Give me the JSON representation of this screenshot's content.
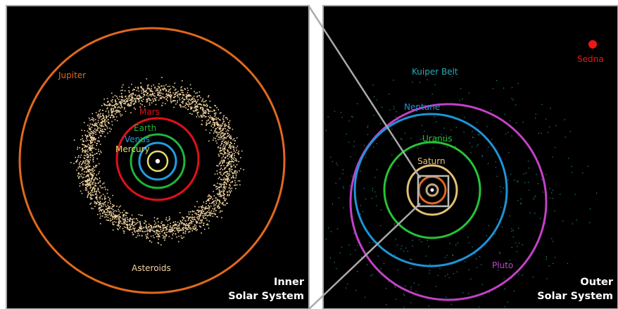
{
  "inner": {
    "title_line1": "Inner",
    "title_line2": "Solar System",
    "labels": {
      "jupiter": "Jupiter",
      "mars": "Mars",
      "earth": "Earth",
      "venus": "Venus",
      "mercury": "Mercury",
      "asteroids": "Asteroids"
    }
  },
  "outer": {
    "title_line1": "Outer",
    "title_line2": "Solar System",
    "labels": {
      "kuiper_belt": "Kuiper Belt",
      "neptune": "Neptune",
      "uranus": "Uranus",
      "saturn": "Saturn",
      "pluto": "Pluto",
      "sedna": "Sedna"
    }
  },
  "colors": {
    "background": "#000000",
    "frame": "#aaaaaa",
    "jupiter": "#e0691d",
    "mars": "#e0101a",
    "earth": "#22b43b",
    "venus": "#1e9ee0",
    "mercury": "#e2df6a",
    "asteroids": "#f1d3a0",
    "kuiper_belt": "#28aab8",
    "neptune": "#1c95d8",
    "uranus": "#25c437",
    "saturn": "#e3c073",
    "pluto": "#c441c7",
    "sedna": "#ee1515",
    "sun": "#ffffff"
  }
}
